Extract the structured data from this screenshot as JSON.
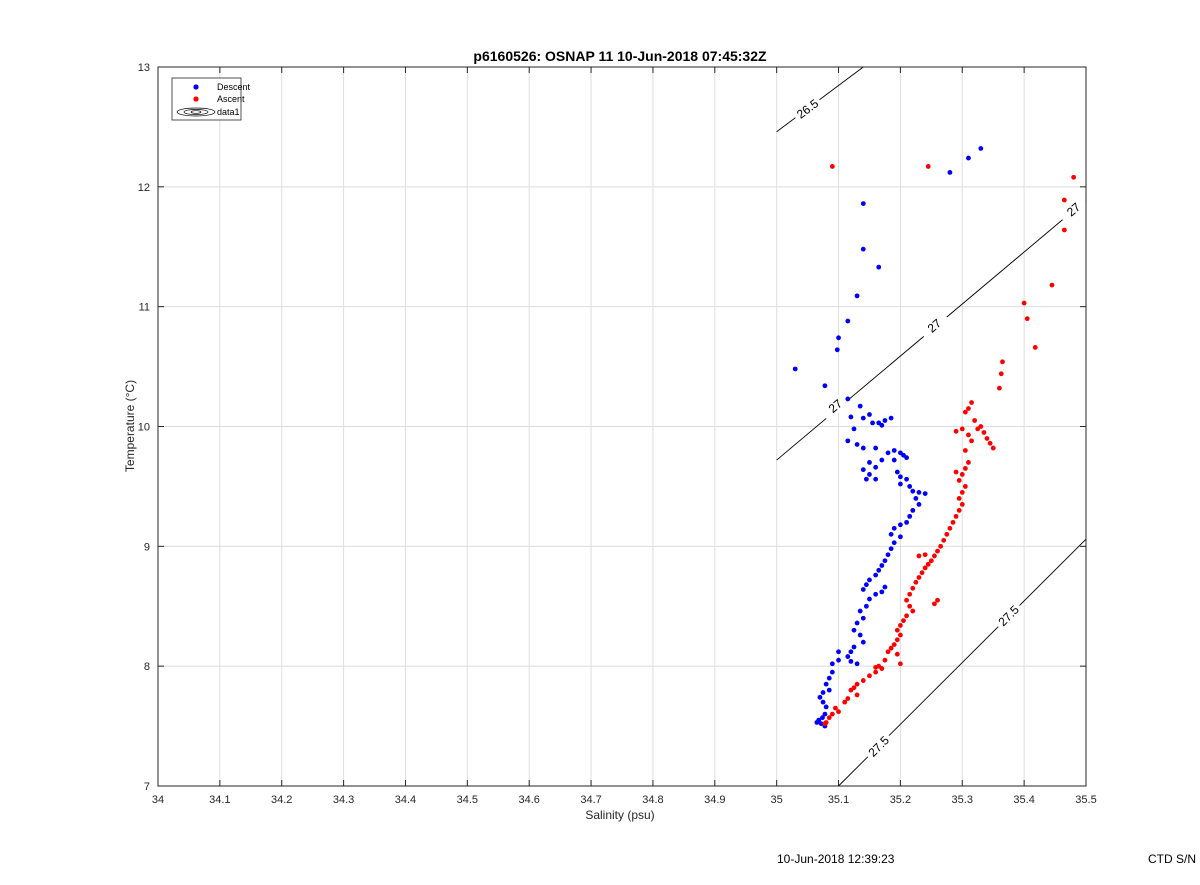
{
  "footer": {
    "timestamp": "10-Jun-2018 12:39:23",
    "serial_label": "CTD S/N"
  },
  "chart_data": {
    "type": "scatter",
    "title": "p6160526: OSNAP 11 10-Jun-2018 07:45:32Z",
    "xlabel": "Salinity (psu)",
    "ylabel": "Temperature (°C)",
    "xlim": [
      34,
      35.5
    ],
    "ylim": [
      7,
      13
    ],
    "grid": true,
    "legend_position": "top-left",
    "x_ticks": [
      "34",
      "34.1",
      "34.2",
      "34.3",
      "34.4",
      "34.5",
      "34.6",
      "34.7",
      "34.8",
      "34.9",
      "35",
      "35.1",
      "35.2",
      "35.3",
      "35.4",
      "35.5"
    ],
    "y_ticks": [
      "7",
      "8",
      "9",
      "10",
      "11",
      "12",
      "13"
    ],
    "legend": [
      "Descent",
      "Ascent",
      "data1"
    ],
    "series": [
      {
        "name": "Descent",
        "color": "#0000ff",
        "points": [
          [
            35.33,
            12.32
          ],
          [
            35.31,
            12.24
          ],
          [
            35.28,
            12.12
          ],
          [
            35.14,
            11.86
          ],
          [
            35.14,
            11.48
          ],
          [
            35.165,
            11.33
          ],
          [
            35.13,
            11.09
          ],
          [
            35.115,
            10.88
          ],
          [
            35.1,
            10.74
          ],
          [
            35.098,
            10.64
          ],
          [
            35.03,
            10.48
          ],
          [
            35.078,
            10.34
          ],
          [
            35.115,
            10.23
          ],
          [
            35.135,
            10.17
          ],
          [
            35.12,
            10.08
          ],
          [
            35.14,
            10.07
          ],
          [
            35.15,
            10.1
          ],
          [
            35.165,
            10.03
          ],
          [
            35.175,
            10.05
          ],
          [
            35.185,
            10.07
          ],
          [
            35.155,
            10.03
          ],
          [
            35.17,
            10.01
          ],
          [
            35.125,
            9.98
          ],
          [
            35.115,
            9.88
          ],
          [
            35.13,
            9.85
          ],
          [
            35.14,
            9.82
          ],
          [
            35.16,
            9.82
          ],
          [
            35.18,
            9.78
          ],
          [
            35.19,
            9.8
          ],
          [
            35.2,
            9.78
          ],
          [
            35.205,
            9.76
          ],
          [
            35.21,
            9.74
          ],
          [
            35.19,
            9.72
          ],
          [
            35.17,
            9.72
          ],
          [
            35.15,
            9.7
          ],
          [
            35.16,
            9.66
          ],
          [
            35.14,
            9.64
          ],
          [
            35.15,
            9.6
          ],
          [
            35.145,
            9.56
          ],
          [
            35.16,
            9.56
          ],
          [
            35.195,
            9.62
          ],
          [
            35.2,
            9.58
          ],
          [
            35.21,
            9.56
          ],
          [
            35.2,
            9.52
          ],
          [
            35.215,
            9.5
          ],
          [
            35.22,
            9.46
          ],
          [
            35.23,
            9.45
          ],
          [
            35.24,
            9.44
          ],
          [
            35.225,
            9.4
          ],
          [
            35.23,
            9.35
          ],
          [
            35.22,
            9.3
          ],
          [
            35.215,
            9.25
          ],
          [
            35.21,
            9.2
          ],
          [
            35.2,
            9.18
          ],
          [
            35.19,
            9.15
          ],
          [
            35.185,
            9.1
          ],
          [
            35.2,
            9.08
          ],
          [
            35.19,
            9.03
          ],
          [
            35.185,
            8.98
          ],
          [
            35.18,
            8.93
          ],
          [
            35.175,
            8.88
          ],
          [
            35.17,
            8.84
          ],
          [
            35.165,
            8.8
          ],
          [
            35.16,
            8.76
          ],
          [
            35.15,
            8.72
          ],
          [
            35.145,
            8.68
          ],
          [
            35.14,
            8.64
          ],
          [
            35.16,
            8.6
          ],
          [
            35.17,
            8.62
          ],
          [
            35.175,
            8.66
          ],
          [
            35.15,
            8.56
          ],
          [
            35.145,
            8.5
          ],
          [
            35.135,
            8.46
          ],
          [
            35.14,
            8.4
          ],
          [
            35.13,
            8.36
          ],
          [
            35.125,
            8.3
          ],
          [
            35.135,
            8.26
          ],
          [
            35.14,
            8.2
          ],
          [
            35.125,
            8.16
          ],
          [
            35.12,
            8.12
          ],
          [
            35.115,
            8.08
          ],
          [
            35.1,
            8.05
          ],
          [
            35.09,
            8.02
          ],
          [
            35.1,
            8.12
          ],
          [
            35.12,
            8.04
          ],
          [
            35.13,
            8.02
          ],
          [
            35.09,
            7.95
          ],
          [
            35.085,
            7.9
          ],
          [
            35.08,
            7.85
          ],
          [
            35.085,
            7.8
          ],
          [
            35.075,
            7.78
          ],
          [
            35.07,
            7.74
          ],
          [
            35.075,
            7.7
          ],
          [
            35.08,
            7.66
          ],
          [
            35.078,
            7.6
          ],
          [
            35.068,
            7.55
          ],
          [
            35.072,
            7.52
          ],
          [
            35.065,
            7.53
          ],
          [
            35.078,
            7.5
          ],
          [
            35.074,
            7.57
          ]
        ]
      },
      {
        "name": "Ascent",
        "color": "#ff0000",
        "points": [
          [
            35.09,
            12.17
          ],
          [
            35.245,
            12.17
          ],
          [
            35.48,
            12.08
          ],
          [
            35.465,
            11.89
          ],
          [
            35.465,
            11.64
          ],
          [
            35.445,
            11.18
          ],
          [
            35.4,
            11.03
          ],
          [
            35.405,
            10.9
          ],
          [
            35.418,
            10.66
          ],
          [
            35.365,
            10.54
          ],
          [
            35.363,
            10.44
          ],
          [
            35.36,
            10.32
          ],
          [
            35.315,
            10.2
          ],
          [
            35.31,
            10.15
          ],
          [
            35.305,
            10.12
          ],
          [
            35.32,
            10.05
          ],
          [
            35.325,
            9.98
          ],
          [
            35.33,
            10.0
          ],
          [
            35.335,
            9.95
          ],
          [
            35.34,
            9.9
          ],
          [
            35.345,
            9.86
          ],
          [
            35.35,
            9.82
          ],
          [
            35.3,
            9.98
          ],
          [
            35.29,
            9.96
          ],
          [
            35.31,
            9.93
          ],
          [
            35.315,
            9.88
          ],
          [
            35.305,
            9.8
          ],
          [
            35.31,
            9.7
          ],
          [
            35.305,
            9.65
          ],
          [
            35.3,
            9.6
          ],
          [
            35.29,
            9.62
          ],
          [
            35.295,
            9.55
          ],
          [
            35.305,
            9.5
          ],
          [
            35.3,
            9.45
          ],
          [
            35.295,
            9.4
          ],
          [
            35.3,
            9.35
          ],
          [
            35.295,
            9.3
          ],
          [
            35.29,
            9.25
          ],
          [
            35.285,
            9.2
          ],
          [
            35.28,
            9.15
          ],
          [
            35.275,
            9.1
          ],
          [
            35.27,
            9.05
          ],
          [
            35.265,
            9.0
          ],
          [
            35.26,
            8.96
          ],
          [
            35.255,
            8.92
          ],
          [
            35.24,
            8.93
          ],
          [
            35.23,
            8.92
          ],
          [
            35.25,
            8.88
          ],
          [
            35.245,
            8.85
          ],
          [
            35.24,
            8.82
          ],
          [
            35.235,
            8.78
          ],
          [
            35.23,
            8.74
          ],
          [
            35.225,
            8.7
          ],
          [
            35.22,
            8.65
          ],
          [
            35.215,
            8.6
          ],
          [
            35.21,
            8.55
          ],
          [
            35.215,
            8.5
          ],
          [
            35.22,
            8.46
          ],
          [
            35.21,
            8.42
          ],
          [
            35.205,
            8.38
          ],
          [
            35.2,
            8.34
          ],
          [
            35.195,
            8.3
          ],
          [
            35.2,
            8.26
          ],
          [
            35.195,
            8.22
          ],
          [
            35.19,
            8.18
          ],
          [
            35.185,
            8.15
          ],
          [
            35.18,
            8.12
          ],
          [
            35.195,
            8.1
          ],
          [
            35.175,
            8.05
          ],
          [
            35.165,
            8.0
          ],
          [
            35.17,
            7.98
          ],
          [
            35.16,
            7.95
          ],
          [
            35.15,
            7.92
          ],
          [
            35.14,
            7.88
          ],
          [
            35.13,
            7.85
          ],
          [
            35.125,
            7.82
          ],
          [
            35.12,
            7.8
          ],
          [
            35.13,
            7.76
          ],
          [
            35.115,
            7.73
          ],
          [
            35.11,
            7.7
          ],
          [
            35.095,
            7.65
          ],
          [
            35.09,
            7.6
          ],
          [
            35.1,
            7.62
          ],
          [
            35.085,
            7.57
          ],
          [
            35.08,
            7.53
          ],
          [
            35.078,
            7.52
          ],
          [
            35.16,
            7.99
          ],
          [
            35.255,
            8.52
          ],
          [
            35.26,
            8.55
          ],
          [
            35.2,
            8.02
          ]
        ]
      }
    ],
    "contours": [
      {
        "name": "data1",
        "color": "#000000",
        "lines": [
          {
            "level": "26.5",
            "points": [
              [
                35.0,
                12.46
              ],
              [
                35.14,
                13.0
              ]
            ]
          },
          {
            "level": "27",
            "points": [
              [
                35.0,
                9.72
              ],
              [
                35.5,
                11.89
              ]
            ]
          },
          {
            "level": "27.5",
            "points": [
              [
                35.1,
                7.0
              ],
              [
                35.5,
                9.06
              ]
            ]
          }
        ],
        "labels": [
          {
            "text": "26.5",
            "at": [
              35.05,
              12.65
            ]
          },
          {
            "text": "27",
            "at": [
              35.095,
              10.17
            ]
          },
          {
            "text": "27",
            "at": [
              35.255,
              10.84
            ]
          },
          {
            "text": "27",
            "at": [
              35.48,
              11.81
            ]
          },
          {
            "text": "27.5",
            "at": [
              35.165,
              7.33
            ]
          },
          {
            "text": "27.5",
            "at": [
              35.375,
              8.42
            ]
          }
        ]
      }
    ]
  }
}
